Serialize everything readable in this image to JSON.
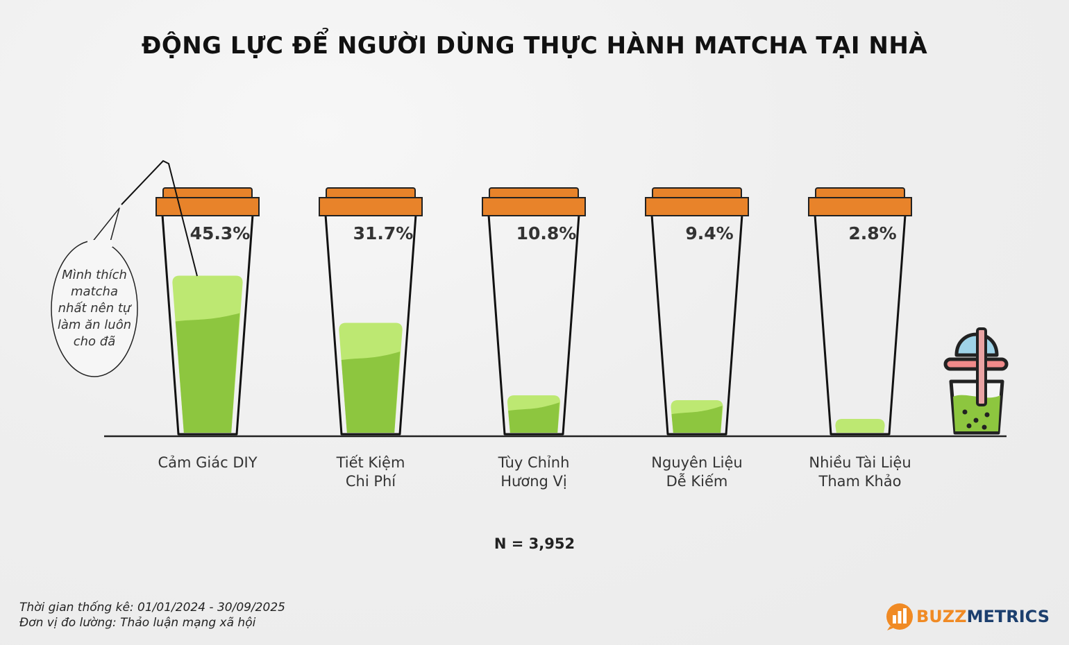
{
  "title": "ĐỘNG LỰC ĐỂ NGƯỜI DÙNG THỰC HÀNH MATCHA TẠI NHÀ",
  "chart_data": {
    "type": "bar",
    "categories": [
      "Cảm Giác DIY",
      "Tiết Kiệm\nChi Phí",
      "Tùy Chỉnh\nHương Vị",
      "Nguyên Liệu\nDễ Kiếm",
      "Nhiều Tài Liệu\nTham Khảo"
    ],
    "values": [
      45.3,
      31.7,
      10.8,
      9.4,
      2.8
    ],
    "value_labels": [
      "45.3%",
      "31.7%",
      "10.8%",
      "9.4%",
      "2.8%"
    ],
    "unit": "%",
    "title": "ĐỘNG LỰC ĐỂ NGƯỜI DÙNG THỰC HÀNH MATCHA TẠI NHÀ",
    "xlabel": "",
    "ylabel": "",
    "grid": false,
    "colors": {
      "lid": "#e8832a",
      "liquid_light": "#bde872",
      "liquid_dark": "#8dc63f",
      "cup_outline": "#111111"
    }
  },
  "sample_size": "N = 3,952",
  "speech_bubble": "Mình thích matcha nhất nên tự làm ăn luôn cho đã",
  "footnotes": {
    "period": "Thời gian thống kê: 01/01/2024 - 30/09/2025",
    "unit": "Đơn vị đo lường: Thảo luận mạng xã hội"
  },
  "logo": {
    "buzz": "BUZZ",
    "metrics": "METRICS",
    "icon": "buzzmetrics-logo-icon",
    "colors": {
      "buzz": "#f08a24",
      "metrics": "#1c3f6e"
    }
  },
  "decor": {
    "icon": "bubble-tea-cup-icon"
  }
}
